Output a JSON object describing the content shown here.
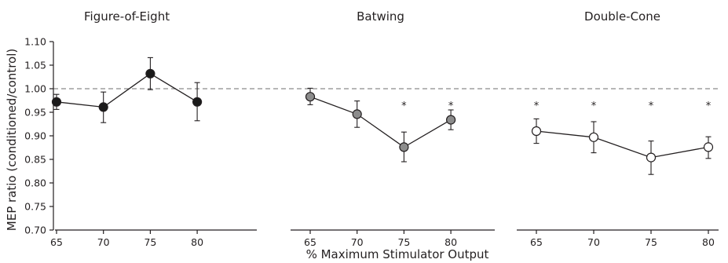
{
  "chart_data": {
    "type": "line",
    "ylabel": "MEP ratio (conditioned/control)",
    "xlabel": "% Maximum Stimulator Output",
    "ylim": [
      0.7,
      1.1
    ],
    "yticks": [
      "0.70",
      "0.75",
      "0.80",
      "0.85",
      "0.90",
      "0.95",
      "1.00",
      "1.05",
      "1.10"
    ],
    "reference_line": 1.0,
    "significance_marker": "*",
    "panels": [
      {
        "title": "Figure-of-Eight",
        "x": [
          "65",
          "70",
          "75",
          "80"
        ],
        "marker_fill": "#1a1a1a",
        "values": [
          0.972,
          0.961,
          1.032,
          0.972
        ],
        "err_low": [
          0.956,
          0.928,
          0.998,
          0.932
        ],
        "err_high": [
          0.988,
          0.993,
          1.066,
          1.013
        ],
        "significant": [
          false,
          false,
          false,
          false
        ]
      },
      {
        "title": "Batwing",
        "x": [
          "65",
          "70",
          "75",
          "80"
        ],
        "marker_fill": "#8c8c8c",
        "values": [
          0.983,
          0.946,
          0.876,
          0.934
        ],
        "err_low": [
          0.966,
          0.918,
          0.845,
          0.913
        ],
        "err_high": [
          1.001,
          0.974,
          0.908,
          0.955
        ],
        "significant": [
          false,
          false,
          true,
          true
        ]
      },
      {
        "title": "Double-Cone",
        "x": [
          "65",
          "70",
          "75",
          "80"
        ],
        "marker_fill": "#ffffff",
        "values": [
          0.91,
          0.897,
          0.854,
          0.876
        ],
        "err_low": [
          0.884,
          0.864,
          0.818,
          0.852
        ],
        "err_high": [
          0.936,
          0.93,
          0.889,
          0.898
        ],
        "significant": [
          true,
          true,
          true,
          true
        ]
      }
    ]
  }
}
